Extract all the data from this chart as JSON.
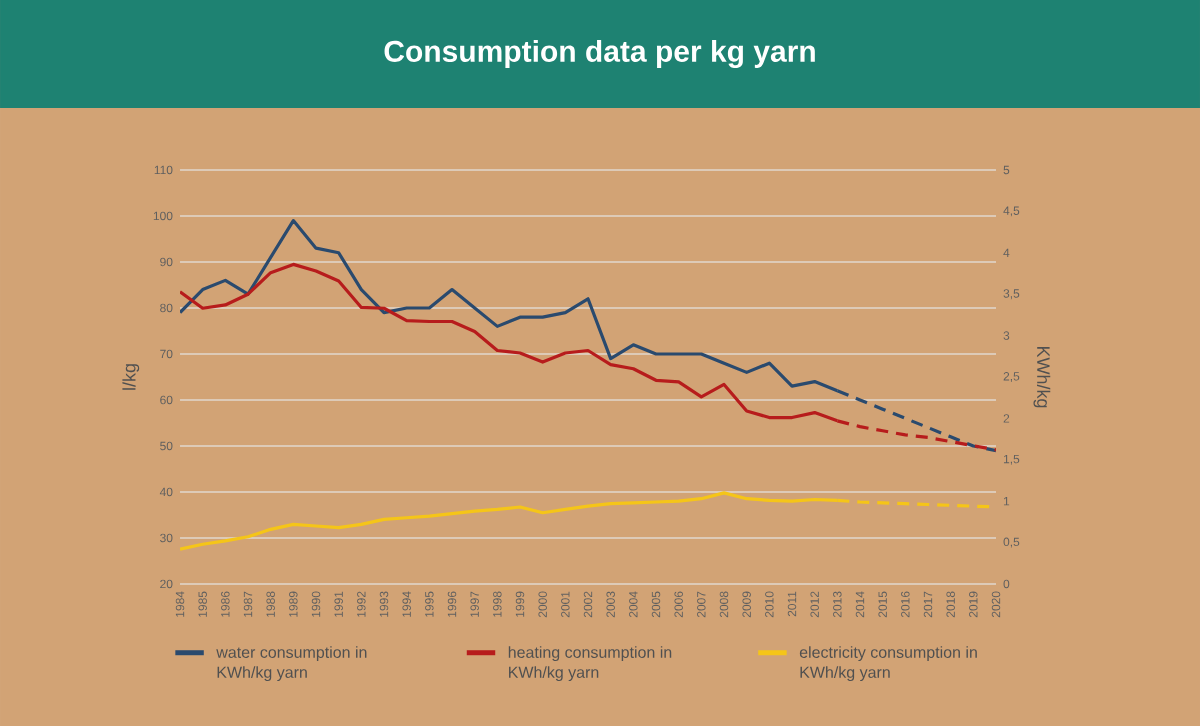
{
  "chart_data": {
    "type": "line",
    "title": "Consumption data per kg yarn",
    "ylabel": "l/kg",
    "y2label": "KWh/kg",
    "xlim": [
      1984,
      2020
    ],
    "xticks": [
      1984,
      1985,
      1986,
      1987,
      1988,
      1989,
      1990,
      1991,
      1992,
      1993,
      1994,
      1995,
      1996,
      1997,
      1998,
      1999,
      2000,
      2001,
      2002,
      2003,
      2004,
      2005,
      2006,
      2007,
      2008,
      2009,
      2010,
      2011,
      2012,
      2013,
      2014,
      2015,
      2016,
      2017,
      2018,
      2019,
      2020
    ],
    "ylim": [
      20,
      110
    ],
    "yticks": [
      20,
      30,
      40,
      50,
      60,
      70,
      80,
      90,
      100,
      110
    ],
    "y2lim": [
      0,
      5
    ],
    "y2ticks": [
      0,
      {
        "value": 0.5,
        "label": "0,5"
      },
      1,
      {
        "value": 1.5,
        "label": "1,5"
      },
      2,
      {
        "value": 2.5,
        "label": "2,5"
      },
      3,
      {
        "value": 3.5,
        "label": "3,5"
      },
      4,
      {
        "value": 4.5,
        "label": "4,5"
      },
      5
    ],
    "grid": "y",
    "legend": "bottom",
    "series": [
      {
        "name": "water consumption in KWh/kg yarn",
        "color": "#2a4a6e",
        "line_style": "solid",
        "x": [
          1984,
          1985,
          1986,
          1987,
          1988,
          1989,
          1990,
          1991,
          1992,
          1993,
          1994,
          1995,
          1996,
          1997,
          1998,
          1999,
          2000,
          2001,
          2002,
          2003,
          2004,
          2005,
          2006,
          2007,
          2008,
          2009,
          2010,
          2011,
          2012,
          2013
        ],
        "values": [
          79,
          84,
          86,
          83,
          91,
          99,
          93,
          92,
          84,
          79,
          80,
          80,
          84,
          80,
          76,
          78,
          78,
          79,
          82,
          69,
          72,
          70,
          70,
          70,
          68,
          66,
          68,
          63,
          64,
          62
        ]
      },
      {
        "color": "#2a4a6e",
        "line_style": "dashed",
        "x": [
          2013,
          2014,
          2015,
          2016,
          2017,
          2018,
          2019,
          2020
        ],
        "values": [
          62,
          60,
          58,
          56,
          54,
          52,
          50,
          49
        ]
      },
      {
        "name": "heating consumption in KWh/kg yarn",
        "color": "#b71c1c",
        "line_style": "solid",
        "axis": "y2",
        "x": [
          1984,
          1985,
          1986,
          1987,
          1988,
          1989,
          1990,
          1991,
          1992,
          1993,
          1994,
          1995,
          1996,
          1997,
          1998,
          1999,
          2000,
          2001,
          2002,
          2003,
          2004,
          2005,
          2006,
          2007,
          2008,
          2009,
          2010,
          2011,
          2012,
          2013
        ],
        "values": [
          3.53,
          3.33,
          3.37,
          3.5,
          3.76,
          3.86,
          3.78,
          3.66,
          3.34,
          3.33,
          3.18,
          3.17,
          3.17,
          3.05,
          2.82,
          2.79,
          2.68,
          2.79,
          2.82,
          2.65,
          2.6,
          2.46,
          2.44,
          2.26,
          2.41,
          2.09,
          2.01,
          2.01,
          2.07,
          1.97
        ]
      },
      {
        "color": "#b71c1c",
        "line_style": "dashed",
        "axis": "y2",
        "x": [
          2013,
          2014,
          2015,
          2016,
          2017,
          2018,
          2019,
          2020
        ],
        "values": [
          1.97,
          1.9,
          1.85,
          1.8,
          1.77,
          1.72,
          1.67,
          1.62
        ]
      },
      {
        "name": "electricity consumption in KWh/kg yarn",
        "color": "#f5c518",
        "line_style": "solid",
        "axis": "y2",
        "x": [
          1984,
          1985,
          1986,
          1987,
          1988,
          1989,
          1990,
          1991,
          1992,
          1993,
          1994,
          1995,
          1996,
          1997,
          1998,
          1999,
          2000,
          2001,
          2002,
          2003,
          2004,
          2005,
          2006,
          2007,
          2008,
          2009,
          2010,
          2011,
          2012,
          2013
        ],
        "values": [
          0.42,
          0.48,
          0.52,
          0.57,
          0.66,
          0.72,
          0.7,
          0.68,
          0.72,
          0.78,
          0.8,
          0.82,
          0.85,
          0.88,
          0.9,
          0.93,
          0.86,
          0.9,
          0.94,
          0.97,
          0.98,
          0.99,
          1.0,
          1.03,
          1.1,
          1.03,
          1.01,
          1.0,
          1.02,
          1.01
        ]
      },
      {
        "color": "#f5c518",
        "line_style": "dashed",
        "axis": "y2",
        "x": [
          2013,
          2014,
          2015,
          2016,
          2017,
          2018,
          2019,
          2020
        ],
        "values": [
          1.01,
          0.99,
          0.98,
          0.97,
          0.96,
          0.95,
          0.94,
          0.93
        ]
      }
    ]
  }
}
